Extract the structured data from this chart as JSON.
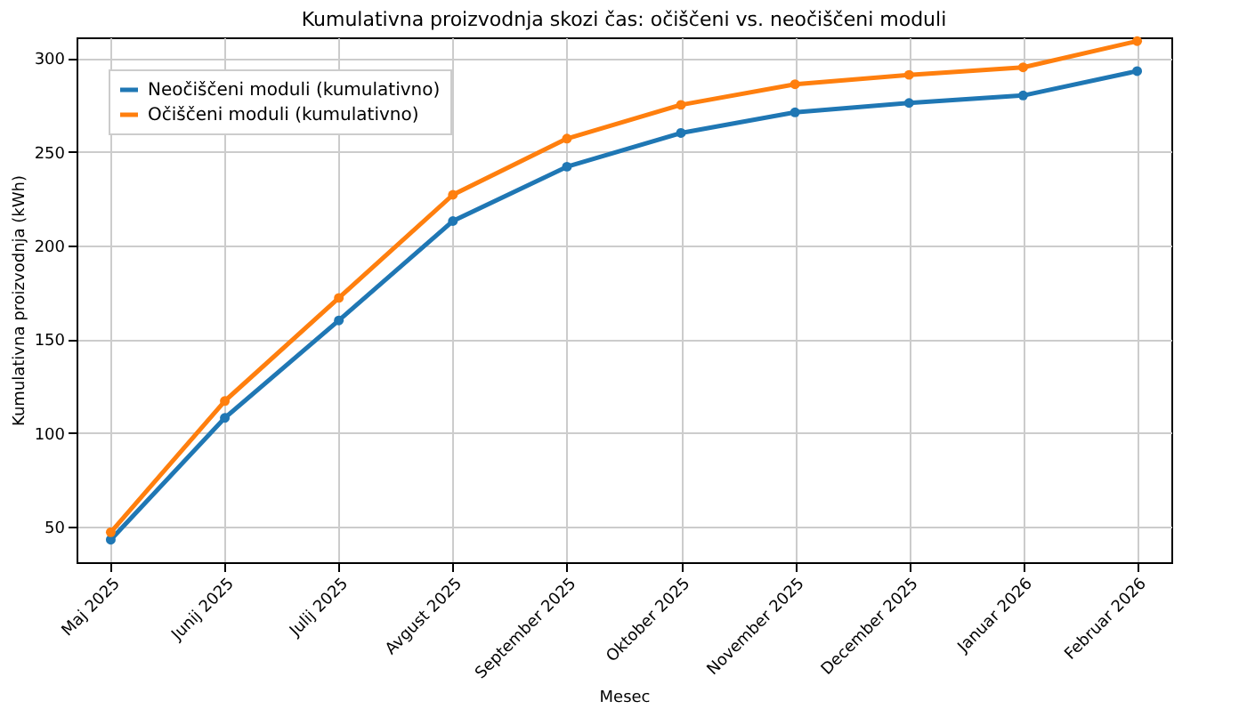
{
  "chart_data": {
    "type": "line",
    "title": "Kumulativna proizvodnja skozi čas: očiščeni vs. neočiščeni moduli",
    "xlabel": "Mesec",
    "ylabel": "Kumulativna proizvodnja (kWh)",
    "categories": [
      "Maj 2025",
      "Junij 2025",
      "Julij 2025",
      "Avgust 2025",
      "September 2025",
      "Oktober 2025",
      "November 2025",
      "December 2025",
      "Januar 2026",
      "Februar 2026"
    ],
    "series": [
      {
        "name": "Neočiščeni moduli (kumulativno)",
        "color": "#1f77b4",
        "values": [
          43,
          108,
          160,
          213,
          242,
          260,
          271,
          276,
          280,
          293
        ]
      },
      {
        "name": "Očiščeni moduli (kumulativno)",
        "color": "#ff7f0e",
        "values": [
          47,
          117,
          172,
          227,
          257,
          275,
          286,
          291,
          295,
          309
        ]
      }
    ],
    "ylim": [
      31,
      311
    ],
    "yticks": [
      50,
      100,
      150,
      200,
      250,
      300
    ],
    "grid": true,
    "legend": "top left",
    "marker": "circle",
    "line_style": "solid"
  }
}
